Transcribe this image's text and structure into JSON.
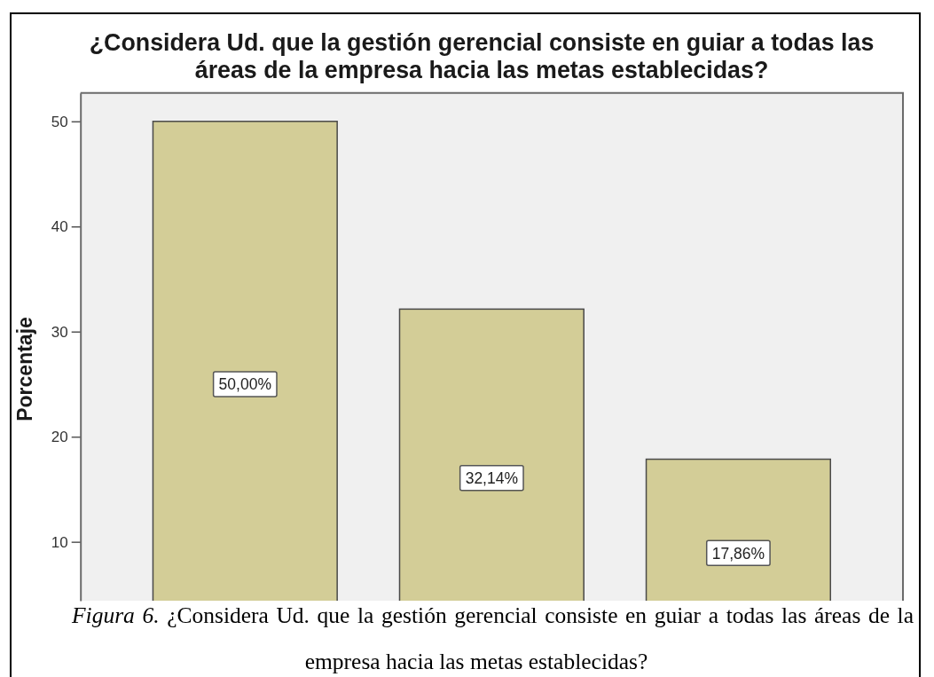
{
  "chart_data": {
    "type": "bar",
    "title": "¿Considera Ud. que la gestión gerencial consiste en guiar a todas las áreas de la empresa hacia las metas establecidas?",
    "ylabel": "Porcentaje",
    "categories": [
      null,
      null,
      null
    ],
    "values": [
      50,
      32.14,
      17.86
    ],
    "value_labels": [
      "50,00%",
      "32,14%",
      "17,86%"
    ],
    "color": "#d3cd97",
    "ylim": [
      4.4,
      52.7
    ],
    "yticks": [
      10,
      20,
      30,
      40,
      50
    ],
    "tick_labels": "y",
    "annotations": [
      "Figura 6.",
      "¿Considera Ud. que la gestión gerencial consiste en guiar a todas las áreas de la empresa hacia las metas establecidas?"
    ]
  }
}
